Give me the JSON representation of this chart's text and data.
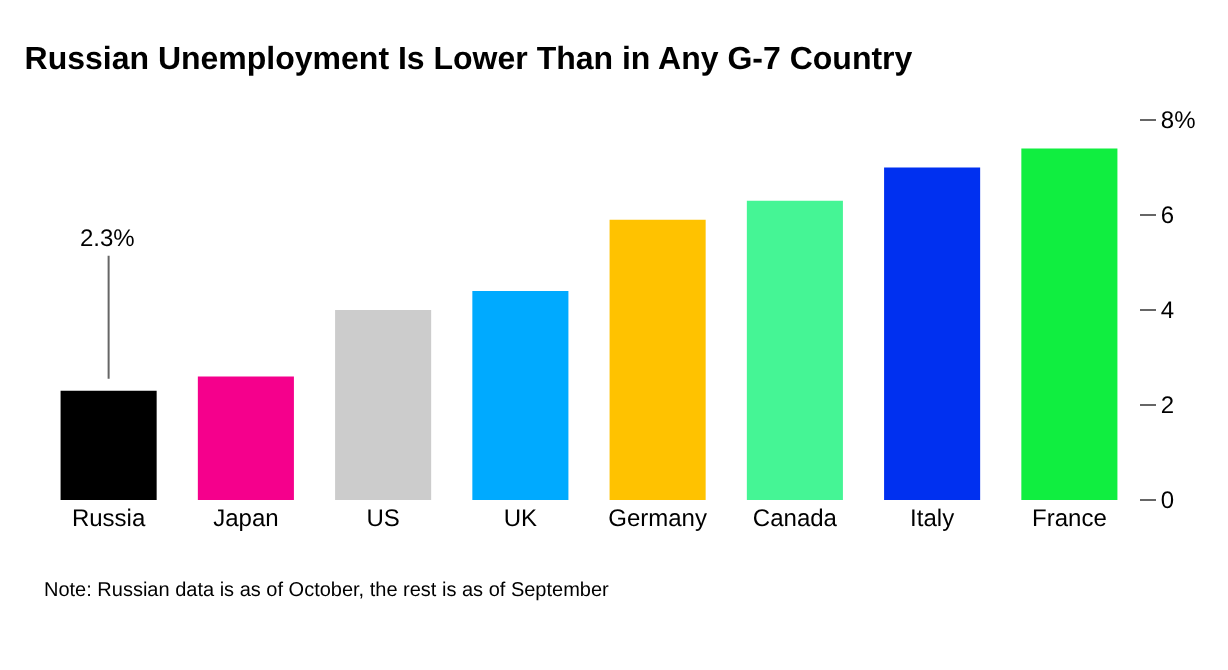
{
  "chart_data": {
    "type": "bar",
    "title": "Russian Unemployment Is Lower Than in Any G-7 Country",
    "categories": [
      "Russia",
      "Japan",
      "US",
      "UK",
      "Germany",
      "Canada",
      "Italy",
      "France"
    ],
    "values": [
      2.3,
      2.6,
      4.0,
      4.4,
      5.9,
      6.3,
      7.0,
      7.4
    ],
    "colors": [
      "#000000",
      "#f5008c",
      "#cccccc",
      "#00aaff",
      "#ffc200",
      "#45f595",
      "#0030f0",
      "#10ee40"
    ],
    "value_labels": [
      "2.3%",
      null,
      null,
      null,
      null,
      null,
      null,
      null
    ],
    "ylim": [
      0,
      8
    ],
    "yticks": [
      {
        "value": 0,
        "label": "0"
      },
      {
        "value": 2,
        "label": "2"
      },
      {
        "value": 4,
        "label": "4"
      },
      {
        "value": 6,
        "label": "6"
      },
      {
        "value": 8,
        "label": "8%"
      }
    ],
    "annotations": [
      "Note: Russian data is as of October, the rest is as of September"
    ]
  }
}
